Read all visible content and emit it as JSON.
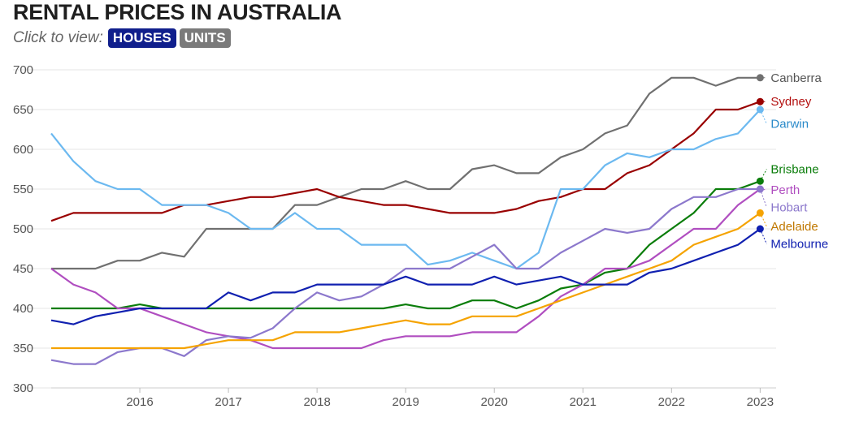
{
  "header": {
    "title": "RENTAL PRICES IN AUSTRALIA",
    "prompt": "Click to view:",
    "tabs": [
      {
        "label": "HOUSES",
        "active": true,
        "color": "#101f8c"
      },
      {
        "label": "UNITS",
        "active": false,
        "color": "#7a7a7a"
      }
    ]
  },
  "chart_data": {
    "type": "line",
    "title": "RENTAL PRICES IN AUSTRALIA",
    "xlabel": "",
    "ylabel": "",
    "ylim": [
      300,
      700
    ],
    "yticks": [
      300,
      350,
      400,
      450,
      500,
      550,
      600,
      650,
      700
    ],
    "xticks": [
      2016,
      2017,
      2018,
      2019,
      2020,
      2021,
      2022,
      2023
    ],
    "xlim": [
      2015.0,
      2023.18
    ],
    "grid": "horizontal",
    "legend": "end-of-line labels on right",
    "x": [
      2015.0,
      2015.25,
      2015.5,
      2015.75,
      2016.0,
      2016.25,
      2016.5,
      2016.75,
      2017.0,
      2017.25,
      2017.5,
      2017.75,
      2018.0,
      2018.25,
      2018.5,
      2018.75,
      2019.0,
      2019.25,
      2019.5,
      2019.75,
      2020.0,
      2020.25,
      2020.5,
      2020.75,
      2021.0,
      2021.25,
      2021.5,
      2021.75,
      2022.0,
      2022.25,
      2022.5,
      2022.75,
      2023.0
    ],
    "series": [
      {
        "name": "Canberra",
        "color": "#707070",
        "label_color": "#555555",
        "values": [
          450,
          450,
          450,
          460,
          460,
          470,
          465,
          500,
          500,
          500,
          500,
          530,
          530,
          540,
          550,
          550,
          560,
          550,
          550,
          575,
          580,
          570,
          570,
          590,
          600,
          620,
          630,
          670,
          690,
          690,
          680,
          690,
          690
        ]
      },
      {
        "name": "Sydney",
        "color": "#990000",
        "label_color": "#b31010",
        "values": [
          510,
          520,
          520,
          520,
          520,
          520,
          530,
          530,
          535,
          540,
          540,
          545,
          550,
          540,
          535,
          530,
          530,
          525,
          520,
          520,
          520,
          525,
          535,
          540,
          550,
          550,
          570,
          580,
          600,
          620,
          650,
          650,
          660
        ]
      },
      {
        "name": "Darwin",
        "color": "#6cb9f0",
        "label_color": "#2a8ac9",
        "values": [
          620,
          585,
          560,
          550,
          550,
          530,
          530,
          530,
          520,
          500,
          500,
          520,
          500,
          500,
          480,
          480,
          480,
          455,
          460,
          470,
          460,
          450,
          470,
          550,
          550,
          580,
          595,
          590,
          600,
          600,
          613,
          620,
          650
        ]
      },
      {
        "name": "Brisbane",
        "color": "#0a7d0a",
        "label_color": "#0a7d0a",
        "values": [
          400,
          400,
          400,
          400,
          405,
          400,
          400,
          400,
          400,
          400,
          400,
          400,
          400,
          400,
          400,
          400,
          405,
          400,
          400,
          410,
          410,
          400,
          410,
          425,
          430,
          445,
          450,
          480,
          500,
          520,
          550,
          550,
          560
        ]
      },
      {
        "name": "Perth",
        "color": "#b04ec0",
        "label_color": "#b04ec0",
        "values": [
          450,
          430,
          420,
          400,
          400,
          390,
          380,
          370,
          365,
          360,
          350,
          350,
          350,
          350,
          350,
          360,
          365,
          365,
          365,
          370,
          370,
          370,
          390,
          415,
          430,
          450,
          450,
          460,
          480,
          500,
          500,
          530,
          550
        ]
      },
      {
        "name": "Hobart",
        "color": "#8c78cc",
        "label_color": "#8c78cc",
        "values": [
          335,
          330,
          330,
          345,
          350,
          350,
          340,
          360,
          365,
          363,
          375,
          400,
          420,
          410,
          415,
          430,
          450,
          450,
          450,
          465,
          480,
          450,
          450,
          470,
          485,
          500,
          495,
          500,
          525,
          540,
          540,
          550,
          550
        ]
      },
      {
        "name": "Adelaide",
        "color": "#f5a300",
        "label_color": "#c07800",
        "values": [
          350,
          350,
          350,
          350,
          350,
          350,
          350,
          355,
          360,
          360,
          360,
          370,
          370,
          370,
          375,
          380,
          385,
          380,
          380,
          390,
          390,
          390,
          400,
          410,
          420,
          430,
          440,
          450,
          460,
          480,
          490,
          500,
          520
        ]
      },
      {
        "name": "Melbourne",
        "color": "#1020b0",
        "label_color": "#1020b0",
        "values": [
          385,
          380,
          390,
          395,
          400,
          400,
          400,
          400,
          420,
          410,
          420,
          420,
          430,
          430,
          430,
          430,
          440,
          430,
          430,
          430,
          440,
          430,
          435,
          440,
          430,
          430,
          430,
          445,
          450,
          460,
          470,
          480,
          500
        ]
      }
    ],
    "end_labels": [
      {
        "name": "Canberra",
        "label_y": 690
      },
      {
        "name": "Sydney",
        "label_y": 660
      },
      {
        "name": "Darwin",
        "label_y": 632
      },
      {
        "name": "Brisbane",
        "label_y": 575
      },
      {
        "name": "Perth",
        "label_y": 549
      },
      {
        "name": "Hobart",
        "label_y": 527
      },
      {
        "name": "Adelaide",
        "label_y": 503
      },
      {
        "name": "Melbourne",
        "label_y": 481
      }
    ]
  }
}
